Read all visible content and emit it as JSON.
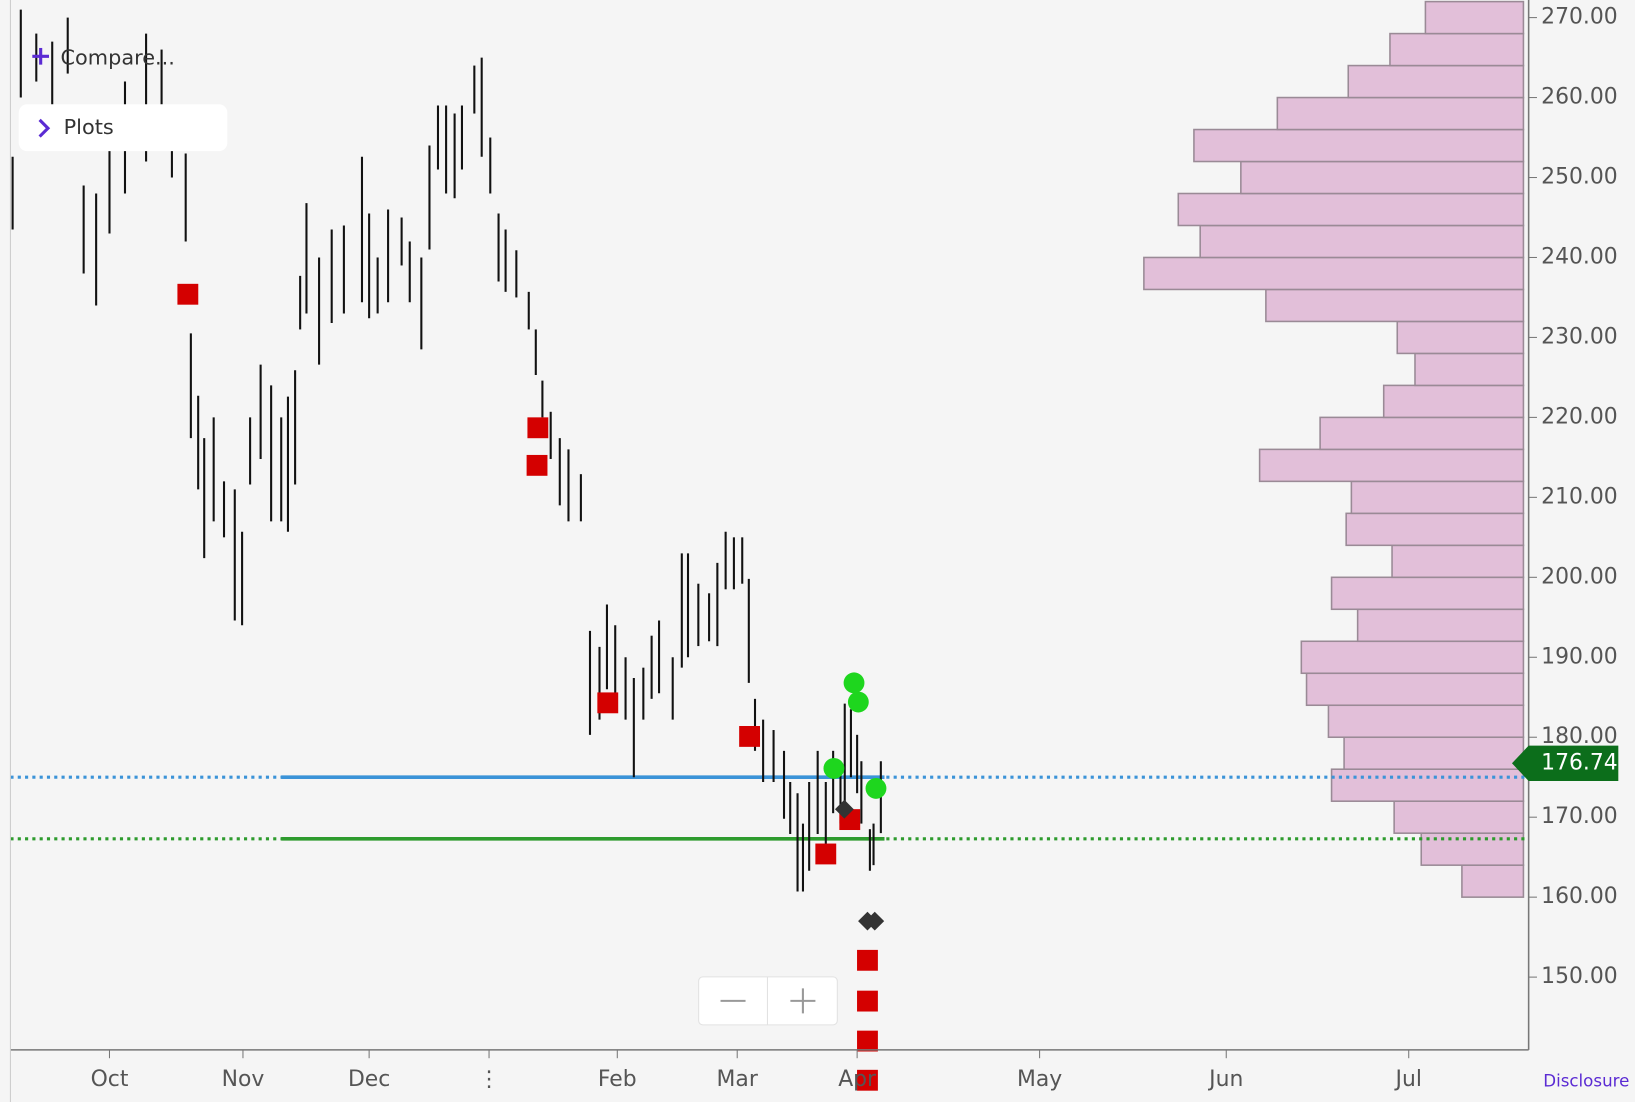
{
  "chart_data": {
    "type": "range-bars",
    "ui": {
      "compare": "Compare...",
      "plots": "Plots",
      "disclosure": "Disclosure"
    },
    "xlim": [
      -23,
      294
    ],
    "xticks": [
      {
        "value": 0,
        "label": "Oct"
      },
      {
        "value": 31,
        "label": "Nov"
      },
      {
        "value": 61,
        "label": "Dec"
      },
      {
        "value": 92,
        "label": "⋮"
      },
      {
        "value": 123,
        "label": "Feb"
      },
      {
        "value": 152,
        "label": "Mar"
      },
      {
        "value": 183,
        "label": "Apr"
      },
      {
        "value": 213,
        "label": "May"
      },
      {
        "value": 244,
        "label": "Jun"
      },
      {
        "value": 274,
        "label": "Jul"
      }
    ],
    "ylim": [
      140.9,
      272.2
    ],
    "yticks": [
      {
        "value": 150,
        "label": "150.00"
      },
      {
        "value": 160,
        "label": "160.00"
      },
      {
        "value": 170,
        "label": "170.00"
      },
      {
        "value": 180,
        "label": "180.00"
      },
      {
        "value": 190,
        "label": "190.00"
      },
      {
        "value": 200,
        "label": "200.00"
      },
      {
        "value": 210,
        "label": "210.00"
      },
      {
        "value": 220,
        "label": "220.00"
      },
      {
        "value": 230,
        "label": "230.00"
      },
      {
        "value": 240,
        "label": "240.00"
      },
      {
        "value": 250,
        "label": "250.00"
      },
      {
        "value": 260,
        "label": "260.00"
      },
      {
        "value": 270,
        "label": "270.00"
      }
    ],
    "grid": true,
    "bars": {
      "color": "#111111",
      "x": [
        -22.5,
        -20.6,
        -17,
        -13.3,
        -9.7,
        -6,
        -3.1,
        0,
        3.6,
        8.5,
        12.1,
        14.5,
        17.7,
        18.9,
        20.6,
        22,
        24.2,
        26.6,
        29.1,
        30.8,
        32.7,
        35.2,
        37.7,
        40.1,
        41.7,
        43.4,
        44.6,
        46.1,
        49.1,
        52.1,
        55,
        59.3,
        61,
        63.2,
        65.9,
        69.4,
        71.5,
        74.5,
        76.6,
        78.8,
        80.9,
        83.1,
        85,
        88.2,
        90.1,
        92.3,
        94.3,
        96,
        98.6,
        101.6,
        103.3,
        104.9,
        106.9,
        109.1,
        111.2,
        114.2,
        116.4,
        118.7,
        120.5,
        122.5,
        125,
        127,
        129.3,
        131.3,
        133.1,
        136.4,
        138.6,
        140.1,
        142.6,
        145.2,
        147.2,
        149.2,
        151.2,
        153.3,
        155,
        156.6,
        158.7,
        161.4,
        164.1,
        165.7,
        167.6,
        169,
        170.6,
        172.8,
        174.9,
        176.8,
        178.7,
        179.8,
        181.4,
        183,
        183.7,
        185.1,
        185.7,
        186.9
      ],
      "high": [
        252.6,
        271,
        268,
        267,
        270,
        249,
        248,
        255,
        262,
        268,
        266,
        256.6,
        253,
        230.5,
        222.7,
        217.4,
        220,
        212,
        211,
        205.7,
        220,
        226.6,
        224,
        220,
        222.6,
        225.9,
        237.7,
        246.8,
        240,
        243.5,
        244,
        252.6,
        245.5,
        240,
        246,
        245,
        242,
        240,
        254,
        259,
        259,
        258,
        259,
        264,
        265,
        255,
        245.5,
        243.5,
        240.9,
        235.7,
        231,
        224.6,
        220.7,
        217.4,
        216,
        212.9,
        193.3,
        191.3,
        196.6,
        194,
        190,
        187.4,
        188.7,
        192.7,
        194.6,
        190,
        203,
        203,
        199.2,
        198,
        201.8,
        205.7,
        205,
        205,
        199.8,
        184.8,
        182.2,
        180.9,
        178.3,
        174.4,
        173,
        169.2,
        174.4,
        178.3,
        174.4,
        178.3,
        175.7,
        184.2,
        183.5,
        180.3,
        177,
        168.5,
        169.2,
        177
      ],
      "low": [
        243.5,
        260,
        262,
        258,
        263,
        238,
        234,
        243,
        248,
        252,
        259,
        250,
        242,
        217.4,
        211,
        202.4,
        207,
        205,
        194.6,
        194,
        211.6,
        214.8,
        207,
        207,
        205.7,
        211.6,
        231,
        233,
        226.6,
        231.8,
        233,
        234.4,
        232.4,
        233,
        234.4,
        239,
        234.4,
        228.5,
        241,
        251,
        248,
        247.4,
        251,
        258,
        252.6,
        248,
        237,
        235.7,
        235,
        231,
        225.3,
        220,
        214.8,
        209,
        207,
        207,
        180.3,
        182.2,
        186,
        183.5,
        182.2,
        175,
        182.2,
        184.8,
        185.5,
        182.2,
        188.7,
        190,
        191.4,
        192,
        191.4,
        198.5,
        198.5,
        199.2,
        186.8,
        178.3,
        174.4,
        174.4,
        169.8,
        167.9,
        160.7,
        160.7,
        163.3,
        167.9,
        165.9,
        170.5,
        169.2,
        171.8,
        175,
        173,
        169.2,
        163.3,
        164,
        168
      ]
    },
    "profile": {
      "color": "#e2bfd9",
      "bins": [
        160,
        164,
        168,
        172,
        176,
        180,
        184,
        188,
        192,
        196,
        200,
        204,
        208,
        212,
        216,
        220,
        224,
        228,
        232,
        236,
        240,
        244,
        248,
        252,
        256,
        260,
        264,
        268,
        272
      ],
      "values": [
        59,
        98,
        124,
        184,
        172,
        187,
        208,
        213,
        159,
        184,
        126,
        170,
        165,
        253,
        195,
        134,
        104,
        121,
        247,
        364,
        310,
        331,
        271,
        316,
        236,
        168,
        128,
        94
      ]
    },
    "levels": [
      {
        "value": 175,
        "color": "#3b93d8",
        "from": 40.1,
        "to": 187.5
      },
      {
        "value": 167.3,
        "color": "#2e9b2e",
        "from": 40.1,
        "to": 187.5
      }
    ],
    "last": {
      "value": 176.74,
      "color": "#0c6e1b"
    },
    "markers": [
      {
        "shape": "square",
        "color": "#d40000",
        "x": [
          18.2,
          103.8,
          103.6,
          120.7,
          155.2,
          174.9,
          181.1,
          184.7,
          184.7,
          184.7,
          184.7
        ],
        "y": [
          235.4,
          218.7,
          214.0,
          184.3,
          180.1,
          165.4,
          169.7,
          152.1,
          147.0,
          142.0,
          137.1
        ]
      },
      {
        "shape": "circle",
        "color": "#1ed61e",
        "x": [
          182.2,
          183.2,
          177.0,
          186.1
        ],
        "y": [
          186.8,
          184.4,
          176.1,
          173.6
        ]
      },
      {
        "shape": "diamond",
        "color": "#333333",
        "x": [
          179.7,
          184.7,
          185.9
        ],
        "y": [
          171.0,
          157.0,
          157.0
        ]
      }
    ]
  }
}
